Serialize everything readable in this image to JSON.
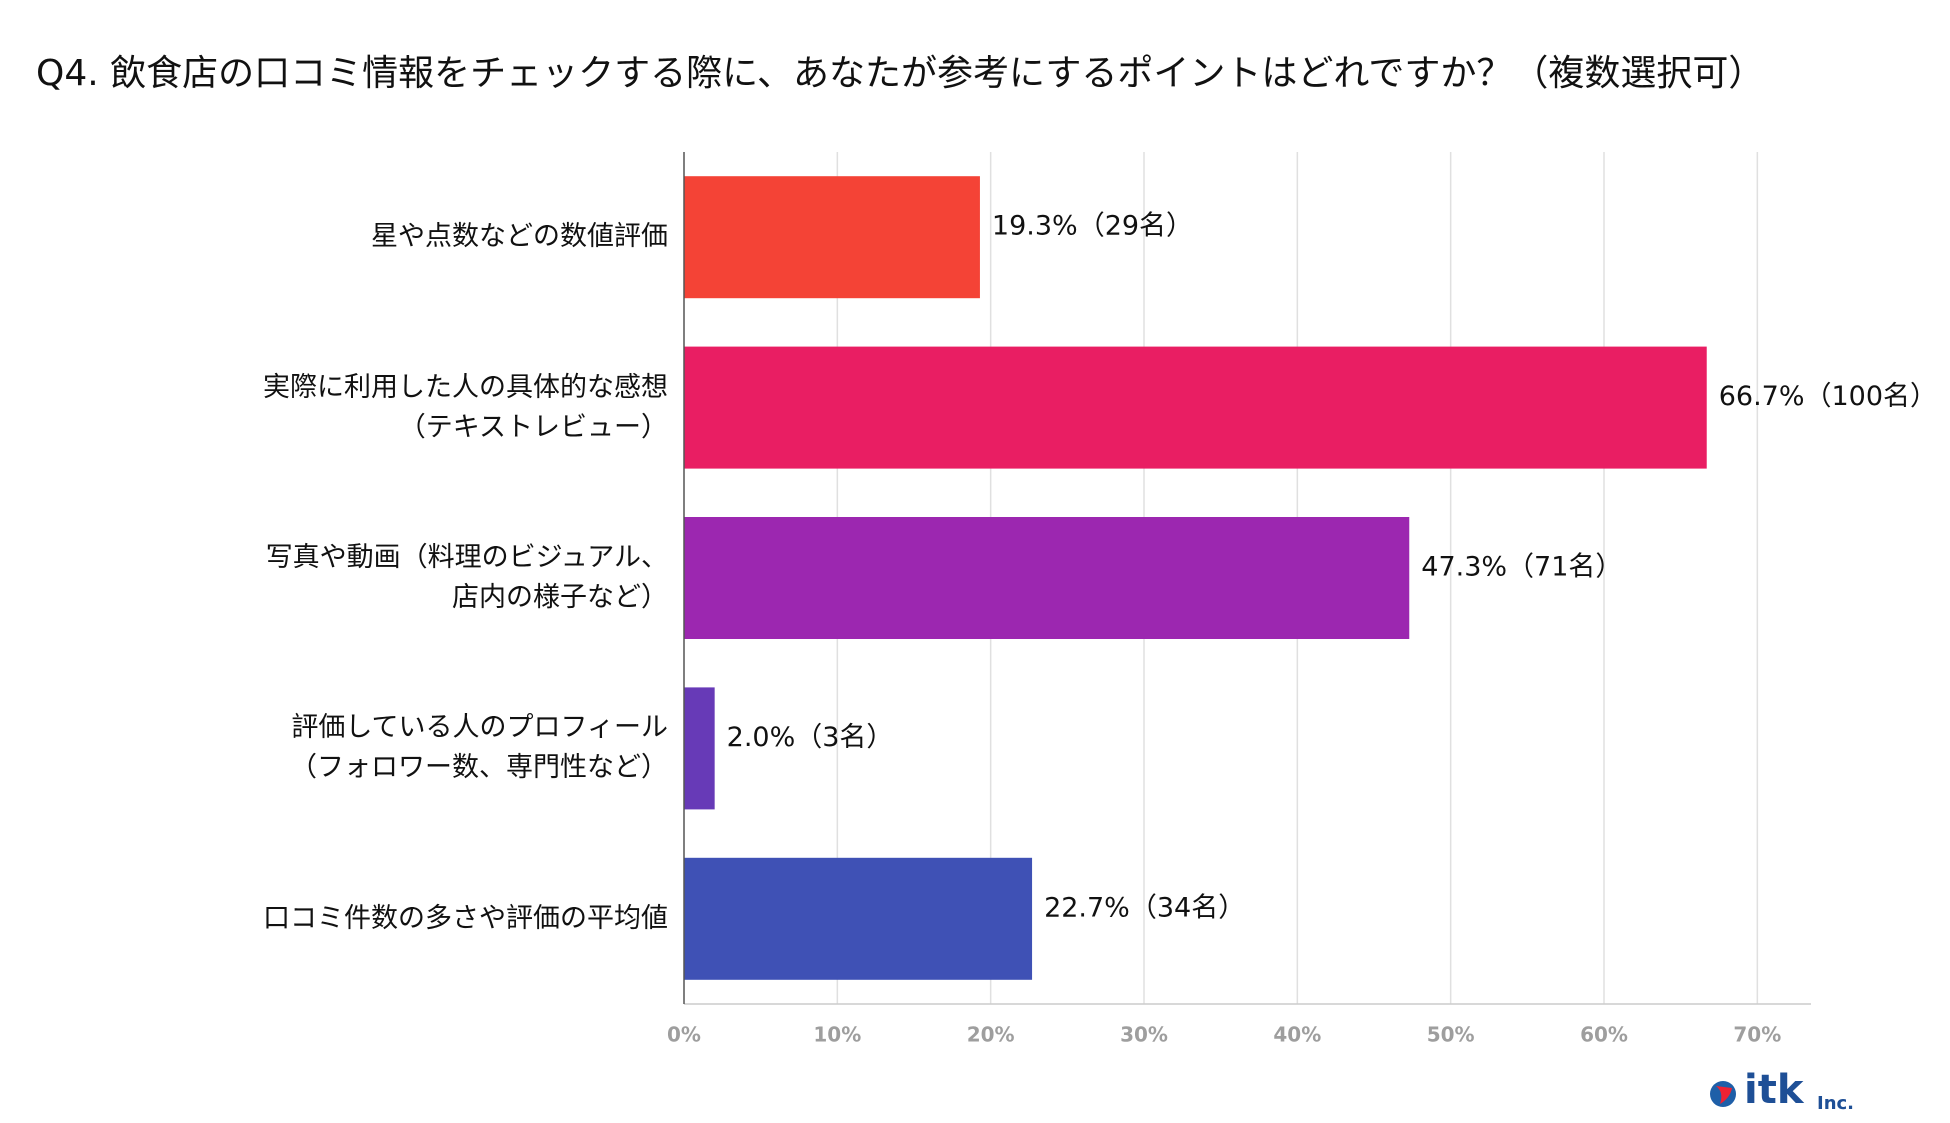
{
  "chart_data": {
    "type": "barh",
    "title": "Q4. 飲食店の口コミ情報をチェックする際に、あなたが参考にするポイントはどれですか？（複数選択可）",
    "categories": [
      "星や点数などの数値評価",
      "実際に利用した人の具体的な感想\n（テキストレビュー）",
      "写真や動画（料理のビジュアル、\n店内の様子など）",
      "評価している人のプロフィール\n（フォロワー数、専門性など）",
      "口コミ件数の多さや評価の平均値"
    ],
    "values": [
      19.3,
      66.7,
      47.3,
      2.0,
      22.7
    ],
    "value_labels": [
      "19.3%（29名）",
      "66.7%（100名）",
      "47.3%（71名）",
      "2.0%（3名）",
      "22.7%（34名）"
    ],
    "colors": [
      "#f44336",
      "#e91e63",
      "#9c27b0",
      "#673ab7",
      "#3f51b5"
    ],
    "xlim": [
      0,
      73.5
    ],
    "xticks": [
      {
        "value": 0,
        "label": "0%"
      },
      {
        "value": 10,
        "label": "10%"
      },
      {
        "value": 20,
        "label": "20%"
      },
      {
        "value": 30,
        "label": "30%"
      },
      {
        "value": 40,
        "label": "40%"
      },
      {
        "value": 50,
        "label": "50%"
      },
      {
        "value": 60,
        "label": "60%"
      },
      {
        "value": 70,
        "label": "70%"
      }
    ],
    "grid": true
  },
  "logo": {
    "name": "itk",
    "suffix": "Inc."
  }
}
